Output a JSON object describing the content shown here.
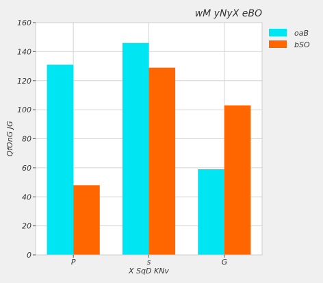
{
  "chart_data": {
    "type": "bar",
    "title": "wM yNyX eBO",
    "xlabel": "X SqD KNv",
    "ylabel": "QfOnG JG",
    "categories": [
      "P",
      "s",
      "G"
    ],
    "series": [
      {
        "name": "oaB",
        "values": [
          131,
          146,
          59
        ]
      },
      {
        "name": "bSO",
        "values": [
          48,
          129,
          103
        ]
      }
    ],
    "ylim": [
      0,
      160
    ],
    "yticks": [
      0,
      20,
      40,
      60,
      80,
      100,
      120,
      140,
      160
    ],
    "grid": true,
    "legend_position": "top-right",
    "colors": {
      "series": [
        "#00e5f2",
        "#ff6600"
      ],
      "plot_background": "#ffffff",
      "page_background": "#f0f0f0",
      "grid": "#d4d4d4",
      "text": "#333333"
    }
  }
}
